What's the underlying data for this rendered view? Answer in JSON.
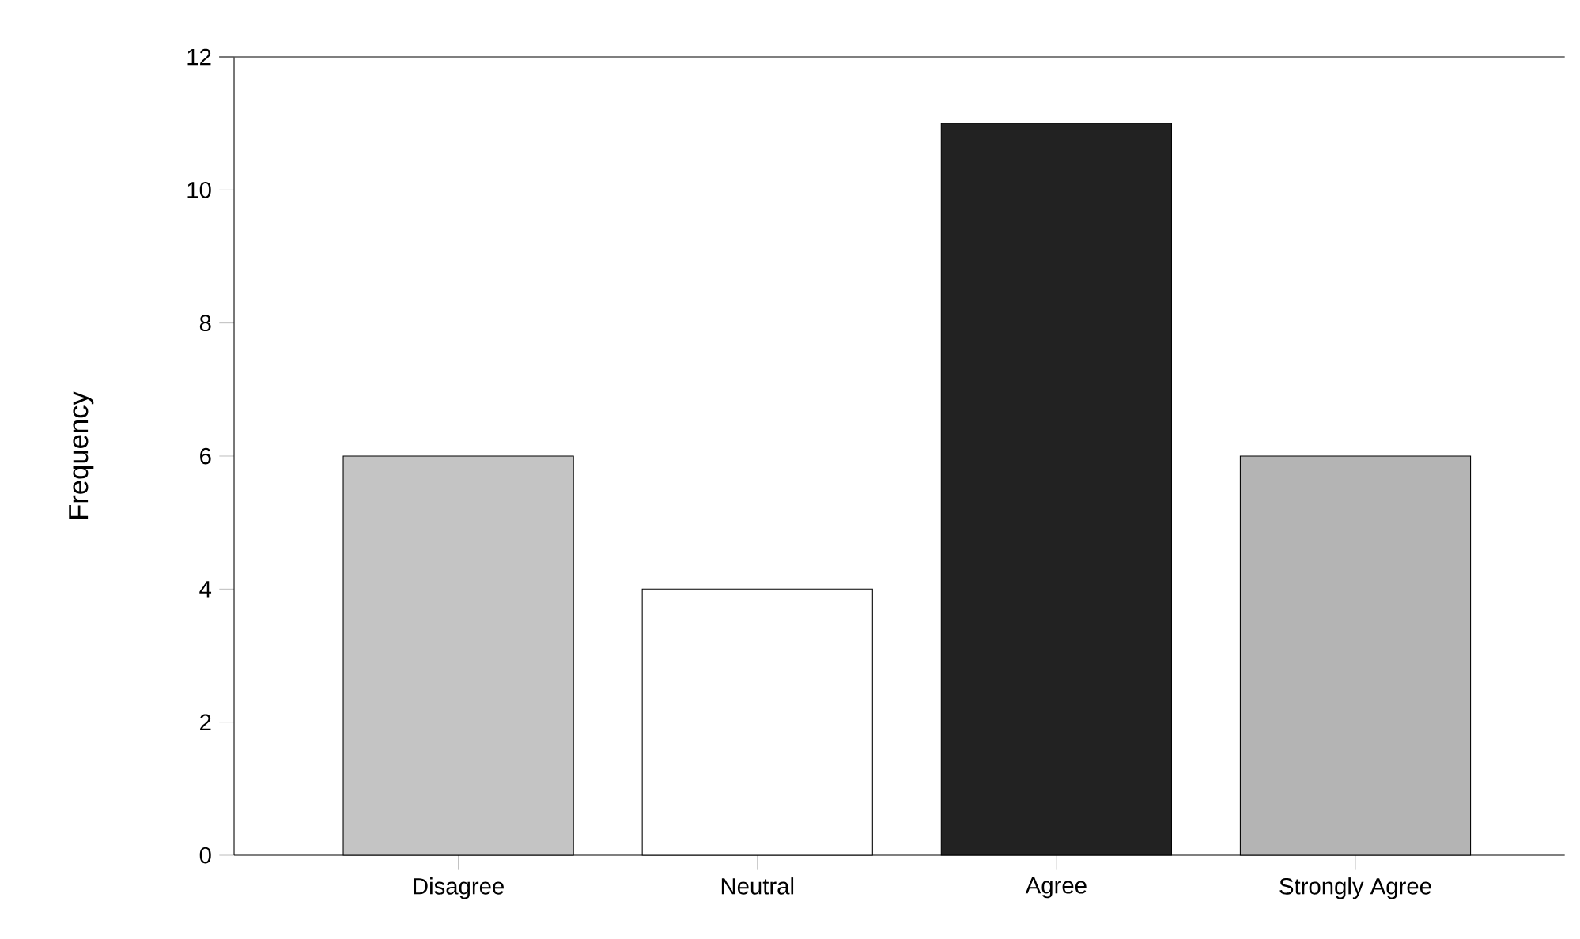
{
  "chart_data": {
    "type": "bar",
    "ylabel": "Frequency",
    "categories": [
      "Disagree",
      "Neutral",
      "Agree",
      "Strongly Agree"
    ],
    "values": [
      6,
      4,
      11,
      6
    ],
    "colors": [
      "#c4c4c4",
      "#ffffff",
      "#222222",
      "#b4b4b4"
    ],
    "ylim": [
      0,
      12
    ],
    "yticks": [
      0,
      2,
      4,
      6,
      8,
      10,
      12
    ],
    "ref_lines": [
      {
        "axis": "y",
        "value": 12,
        "color": "#555555"
      }
    ],
    "grid": false
  }
}
